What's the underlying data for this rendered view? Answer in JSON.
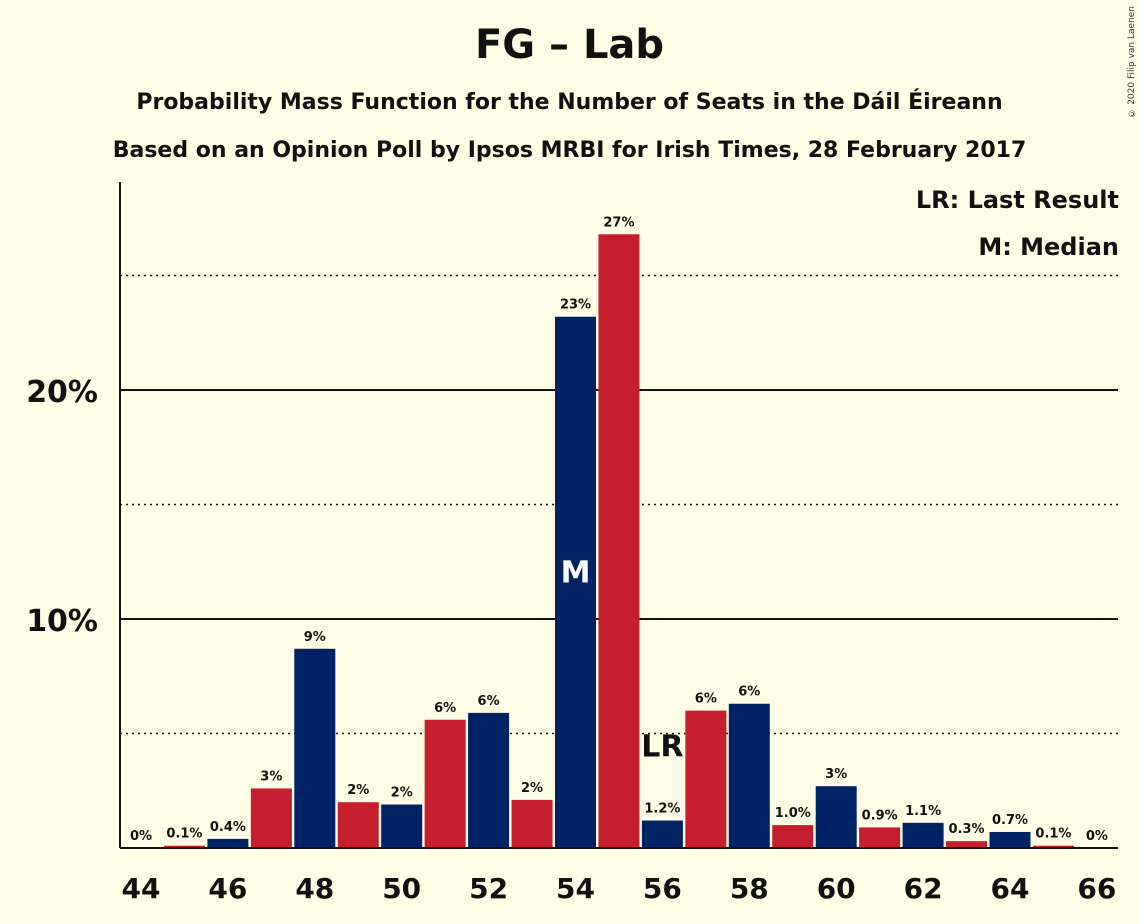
{
  "chart_data": {
    "type": "bar",
    "title": "FG – Lab",
    "subtitle": "Probability Mass Function for the Number of Seats in the Dáil Éireann",
    "subtitle2": "Based on an Opinion Poll by Ipsos MRBI for Irish Times, 28 February 2017",
    "copyright": "© 2020 Filip van Laenen",
    "legend": [
      "LR: Last Result",
      "M: Median"
    ],
    "legend_placement": "top-right",
    "xlabel": "",
    "ylabel": "",
    "ylim": [
      0,
      29
    ],
    "y_ticks": [
      {
        "value": 10,
        "label": "10%"
      },
      {
        "value": 20,
        "label": "20%"
      }
    ],
    "y_dotted_lines": [
      5,
      15,
      25
    ],
    "x_tick_labels": [
      "44",
      "46",
      "48",
      "50",
      "52",
      "54",
      "56",
      "58",
      "60",
      "62",
      "64",
      "66"
    ],
    "x": [
      44,
      45,
      46,
      47,
      48,
      49,
      50,
      51,
      52,
      53,
      54,
      55,
      56,
      57,
      58,
      59,
      60,
      61,
      62,
      63,
      64,
      65,
      66
    ],
    "values": [
      0,
      0.1,
      0.4,
      2.6,
      8.7,
      2.0,
      1.9,
      5.6,
      5.9,
      2.1,
      23.2,
      26.8,
      1.2,
      6.0,
      6.3,
      1.0,
      2.7,
      0.9,
      1.1,
      0.3,
      0.7,
      0.1,
      0
    ],
    "labels": [
      "0%",
      "0.1%",
      "0.4%",
      "3%",
      "9%",
      "2%",
      "2%",
      "6%",
      "6%",
      "2%",
      "23%",
      "27%",
      "1.2%",
      "6%",
      "6%",
      "1.0%",
      "3%",
      "0.9%",
      "1.1%",
      "0.3%",
      "0.7%",
      "0.1%",
      "0%"
    ],
    "median_seat": 54,
    "median_marker": "M",
    "last_result_seat": 56,
    "last_result_marker": "LR",
    "colors": {
      "FG": "#002366",
      "Lab": "#C41E2F",
      "background": "#FFFDE5"
    }
  }
}
